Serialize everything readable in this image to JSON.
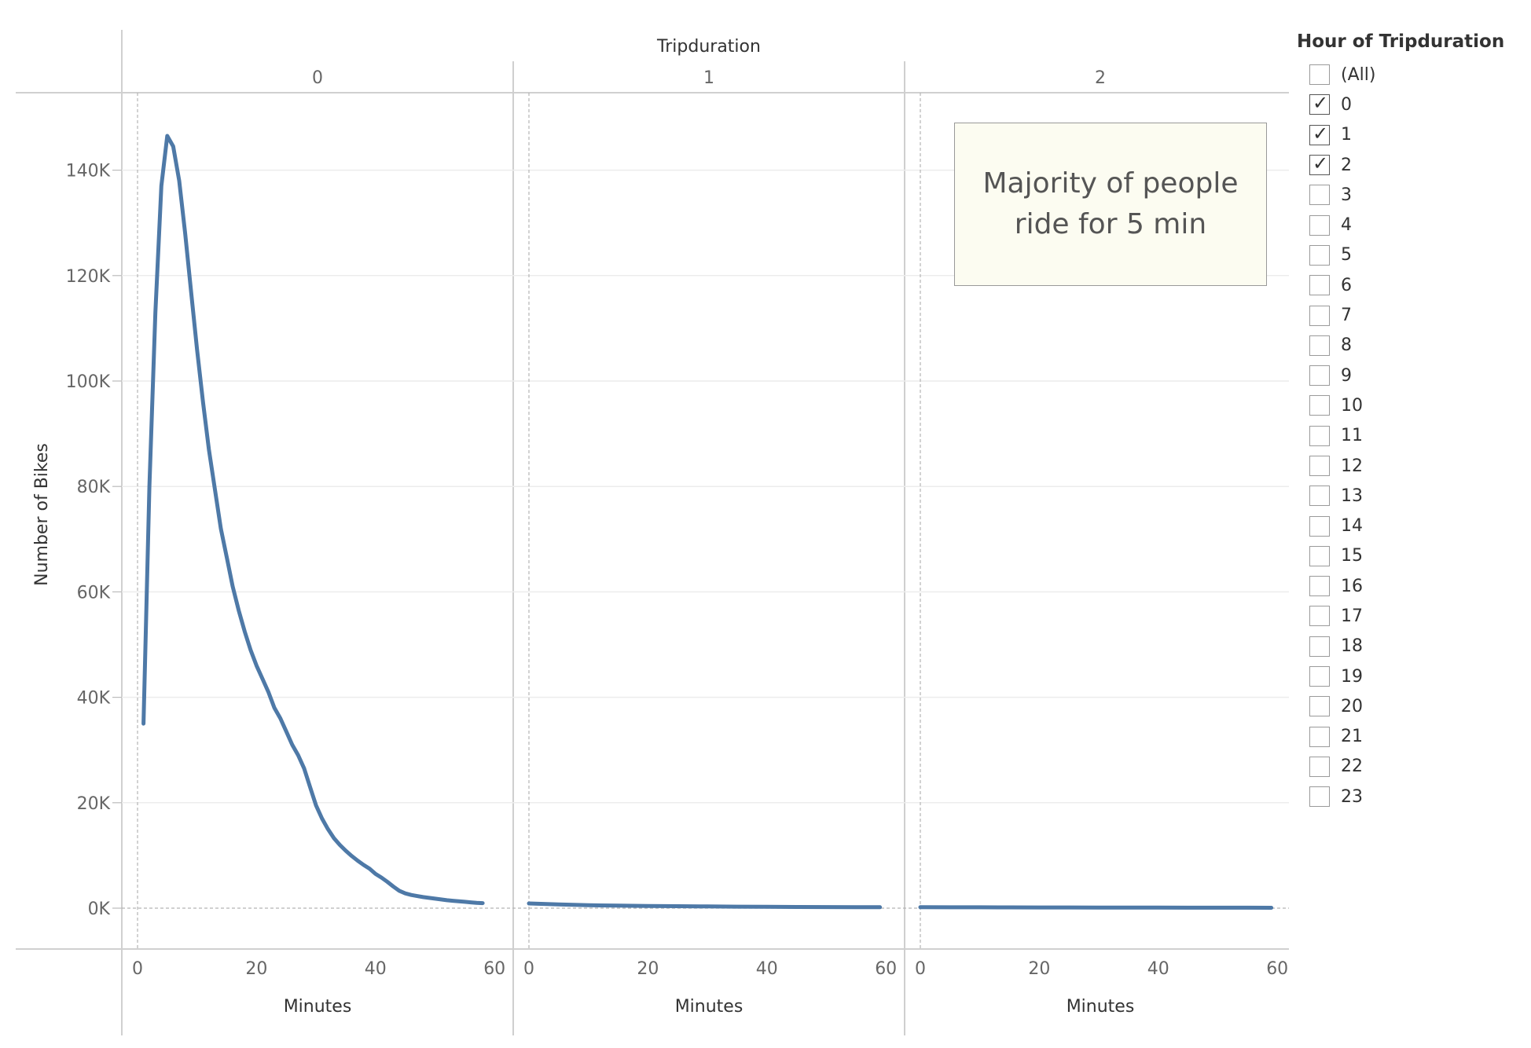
{
  "chart_data": {
    "type": "line",
    "column_header_title": "Tripduration",
    "panels": [
      {
        "panel": "0",
        "x": [
          1,
          2,
          3,
          4,
          5,
          6,
          7,
          8,
          9,
          10,
          11,
          12,
          13,
          14,
          15,
          16,
          17,
          18,
          19,
          20,
          21,
          22,
          23,
          24,
          25,
          26,
          27,
          28,
          29,
          30,
          31,
          32,
          33,
          34,
          35,
          36,
          37,
          38,
          39,
          40,
          41,
          42,
          43,
          44,
          45,
          46,
          47,
          48,
          49,
          50,
          51,
          52,
          53,
          54,
          55,
          56,
          57,
          58
        ],
        "y": [
          35000,
          80000,
          113000,
          137000,
          146500,
          144500,
          138000,
          128000,
          117000,
          106000,
          96000,
          87000,
          79500,
          72000,
          66500,
          61000,
          56500,
          52500,
          49000,
          46000,
          43500,
          41000,
          38000,
          36000,
          33500,
          31000,
          29000,
          26500,
          23000,
          19500,
          17000,
          15000,
          13300,
          12000,
          10900,
          9900,
          9000,
          8200,
          7500,
          6500,
          5800,
          5000,
          4100,
          3300,
          2800,
          2500,
          2300,
          2100,
          1950,
          1800,
          1650,
          1500,
          1400,
          1300,
          1200,
          1100,
          1000,
          950
        ]
      },
      {
        "panel": "1",
        "x": [
          0,
          5,
          10,
          15,
          20,
          25,
          30,
          35,
          40,
          45,
          50,
          55,
          59
        ],
        "y": [
          900,
          700,
          550,
          480,
          420,
          380,
          330,
          290,
          260,
          230,
          210,
          190,
          180
        ]
      },
      {
        "panel": "2",
        "x": [
          0,
          5,
          10,
          15,
          20,
          25,
          30,
          35,
          40,
          45,
          50,
          55,
          59
        ],
        "y": [
          180,
          170,
          160,
          150,
          140,
          130,
          120,
          110,
          100,
          95,
          90,
          85,
          80
        ]
      }
    ],
    "xlabel": "Minutes",
    "ylabel": "Number of Bikes",
    "xlim": [
      0,
      60
    ],
    "ylim": [
      0,
      155000
    ],
    "x_ticks": [
      "0",
      "20",
      "40",
      "60"
    ],
    "y_ticks": [
      "0K",
      "20K",
      "40K",
      "60K",
      "80K",
      "100K",
      "120K",
      "140K"
    ],
    "grid": true,
    "series_color": "#4e79a7"
  },
  "annotation": "Majority of people\nride for 5 min",
  "legend": {
    "title": "Hour of Tripduration",
    "items": [
      {
        "label": "(All)",
        "checked": false
      },
      {
        "label": "0",
        "checked": true
      },
      {
        "label": "1",
        "checked": true
      },
      {
        "label": "2",
        "checked": true
      },
      {
        "label": "3",
        "checked": false
      },
      {
        "label": "4",
        "checked": false
      },
      {
        "label": "5",
        "checked": false
      },
      {
        "label": "6",
        "checked": false
      },
      {
        "label": "7",
        "checked": false
      },
      {
        "label": "8",
        "checked": false
      },
      {
        "label": "9",
        "checked": false
      },
      {
        "label": "10",
        "checked": false
      },
      {
        "label": "11",
        "checked": false
      },
      {
        "label": "12",
        "checked": false
      },
      {
        "label": "13",
        "checked": false
      },
      {
        "label": "14",
        "checked": false
      },
      {
        "label": "15",
        "checked": false
      },
      {
        "label": "16",
        "checked": false
      },
      {
        "label": "17",
        "checked": false
      },
      {
        "label": "18",
        "checked": false
      },
      {
        "label": "19",
        "checked": false
      },
      {
        "label": "20",
        "checked": false
      },
      {
        "label": "21",
        "checked": false
      },
      {
        "label": "22",
        "checked": false
      },
      {
        "label": "23",
        "checked": false
      }
    ]
  }
}
